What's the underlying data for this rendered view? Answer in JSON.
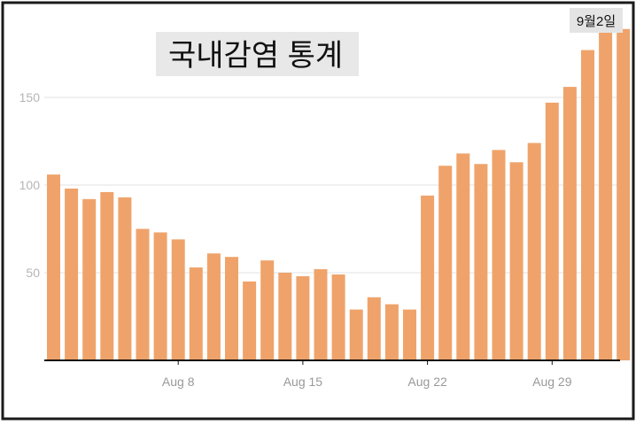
{
  "chart_data": {
    "type": "bar",
    "title": "국내감염 통계",
    "annotation": "9월2일",
    "xlabel": "",
    "ylabel": "",
    "ylim": [
      0,
      200
    ],
    "yticks": [
      50,
      100,
      150
    ],
    "xtick_labels": [
      {
        "label": "Aug 8",
        "at": "Aug 8"
      },
      {
        "label": "Aug 15",
        "at": "Aug 15"
      },
      {
        "label": "Aug 22",
        "at": "Aug 22"
      },
      {
        "label": "Aug 29",
        "at": "Aug 29"
      }
    ],
    "grid": true,
    "legend": "none",
    "bar_color": "#efa36a",
    "categories": [
      "Aug 1",
      "Aug 2",
      "Aug 3",
      "Aug 4",
      "Aug 5",
      "Aug 6",
      "Aug 7",
      "Aug 8",
      "Aug 9",
      "Aug 10",
      "Aug 11",
      "Aug 12",
      "Aug 13",
      "Aug 14",
      "Aug 15",
      "Aug 16",
      "Aug 17",
      "Aug 18",
      "Aug 19",
      "Aug 20",
      "Aug 21",
      "Aug 22",
      "Aug 23",
      "Aug 24",
      "Aug 25",
      "Aug 26",
      "Aug 27",
      "Aug 28",
      "Aug 29",
      "Aug 30",
      "Aug 31",
      "Sep 1",
      "Sep 2"
    ],
    "values": [
      106,
      98,
      92,
      96,
      93,
      75,
      73,
      69,
      53,
      61,
      59,
      45,
      57,
      50,
      48,
      52,
      49,
      29,
      36,
      32,
      29,
      94,
      111,
      118,
      112,
      120,
      113,
      124,
      147,
      156,
      177,
      188,
      189
    ]
  }
}
